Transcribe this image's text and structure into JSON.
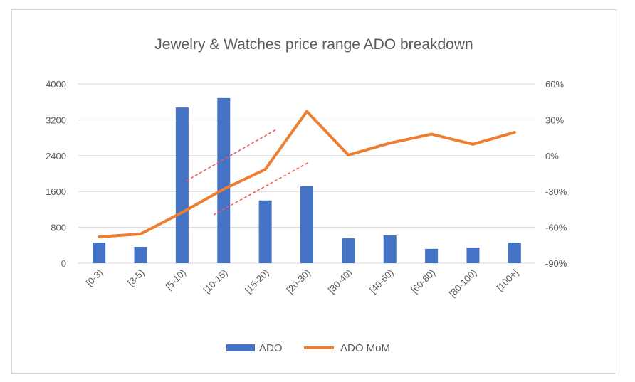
{
  "chart_data": {
    "type": "bar+line",
    "title": "Jewelry & Watches price range ADO breakdown",
    "categories": [
      "[0-3)",
      "[3-5)",
      "[5-10)",
      "[10-15)",
      "[15-20)",
      "[20-30)",
      "[30-40)",
      "[40-60)",
      "[60-80)",
      "[80-100)",
      "[100+]"
    ],
    "series": [
      {
        "name": "ADO",
        "type": "bar",
        "axis": "left",
        "color": "#4472C4",
        "values": [
          460,
          365,
          3475,
          3685,
          1400,
          1715,
          555,
          620,
          320,
          350,
          460
        ]
      },
      {
        "name": "ADO MoM",
        "type": "line",
        "axis": "right",
        "color": "#ED7D31",
        "values": [
          -68,
          -65.5,
          -47.5,
          -28,
          -11.5,
          37,
          0.5,
          10.5,
          18,
          9.5,
          19.5
        ]
      }
    ],
    "left_axis": {
      "min": 0,
      "max": 4000,
      "ticks": [
        0,
        800,
        1600,
        2400,
        3200,
        4000
      ],
      "tick_labels": [
        "0",
        "800",
        "1600",
        "2400",
        "3200",
        "4000"
      ]
    },
    "right_axis": {
      "min": -90,
      "max": 60,
      "ticks": [
        -90,
        -60,
        -30,
        0,
        30,
        60
      ],
      "tick_labels": [
        "-90%",
        "-60%",
        "-30%",
        "0%",
        "30%",
        "60%"
      ]
    },
    "grid": true,
    "legend": {
      "placement": "bottom",
      "entries": [
        "ADO",
        "ADO MoM"
      ]
    },
    "annotations": [
      {
        "type": "dashed-parallel-lines",
        "color": "#FF5050"
      }
    ]
  }
}
